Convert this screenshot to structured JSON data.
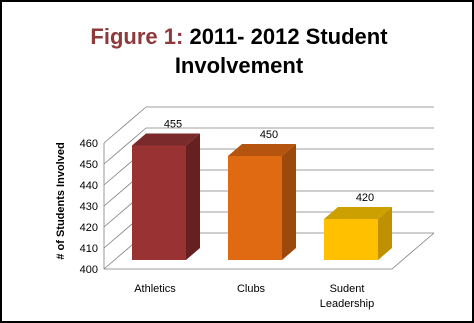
{
  "chart_data": {
    "type": "bar",
    "title_prefix": "Figure 1:",
    "title_line1": "2011- 2012 Student",
    "title_line2": "Involvement",
    "ylabel": "# of Students Involved",
    "xlabel": "",
    "ylim": [
      400,
      460
    ],
    "yticks": [
      "400",
      "410",
      "420",
      "430",
      "440",
      "450",
      "460"
    ],
    "categories": [
      {
        "lines": [
          "Athletics"
        ]
      },
      {
        "lines": [
          "Clubs"
        ]
      },
      {
        "lines": [
          "Sudent",
          "Leadership"
        ]
      }
    ],
    "values": [
      455,
      450,
      420
    ],
    "data_labels": [
      "455",
      "450",
      "420"
    ],
    "grid": true,
    "legend": "none",
    "colors": {
      "Athletics": {
        "front": "#993333",
        "side": "#66201f",
        "top": "#7a2a2a"
      },
      "Clubs": {
        "front": "#e06a12",
        "side": "#9c4a0c",
        "top": "#b4540e"
      },
      "Sudent Leadership": {
        "front": "#ffc000",
        "side": "#bf9000",
        "top": "#cca000"
      }
    },
    "title_prefix_color": "#8e3a3b"
  }
}
